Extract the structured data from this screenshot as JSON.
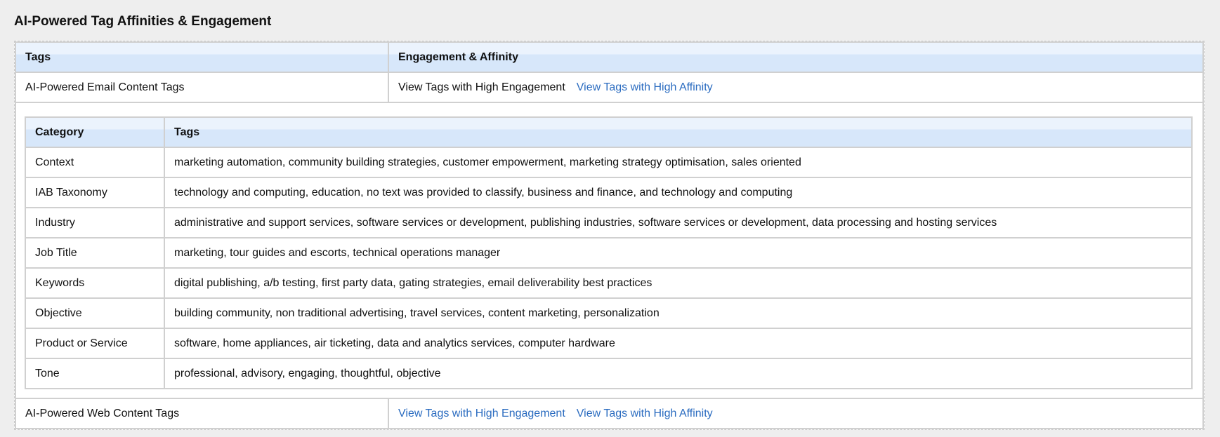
{
  "title": "AI-Powered Tag Affinities & Engagement",
  "outer_headers": [
    "Tags",
    "Engagement & Affinity"
  ],
  "email_row": {
    "label": "AI-Powered Email Content Tags",
    "engagement": "View Tags with High Engagement",
    "affinity": "View Tags with High Affinity"
  },
  "inner_headers": [
    "Category",
    "Tags"
  ],
  "rows": [
    {
      "category": "Context",
      "tags": "marketing automation, community building strategies, customer empowerment, marketing strategy optimisation, sales oriented"
    },
    {
      "category": "IAB Taxonomy",
      "tags": "technology and computing, education, no text was provided to classify, business and finance, and technology and computing"
    },
    {
      "category": "Industry",
      "tags": "administrative and support services, software services or development, publishing industries, software services or development, data processing and hosting services"
    },
    {
      "category": "Job Title",
      "tags": "marketing, tour guides and escorts, technical operations manager"
    },
    {
      "category": "Keywords",
      "tags": "digital publishing, a/b testing, first party data, gating strategies, email deliverability best practices"
    },
    {
      "category": "Objective",
      "tags": "building community, non traditional advertising, travel services, content marketing, personalization"
    },
    {
      "category": "Product or Service",
      "tags": "software, home appliances, air ticketing, data and analytics services, computer hardware"
    },
    {
      "category": "Tone",
      "tags": "professional, advisory, engaging, thoughtful, objective"
    }
  ],
  "web_row": {
    "label": "AI-Powered Web Content Tags",
    "engagement": "View Tags with High Engagement",
    "affinity": "View Tags with High Affinity"
  },
  "colors": {
    "link": "#2b6cc0",
    "header_top": "#ebf3fd",
    "header_bottom": "#d7e7fa"
  }
}
